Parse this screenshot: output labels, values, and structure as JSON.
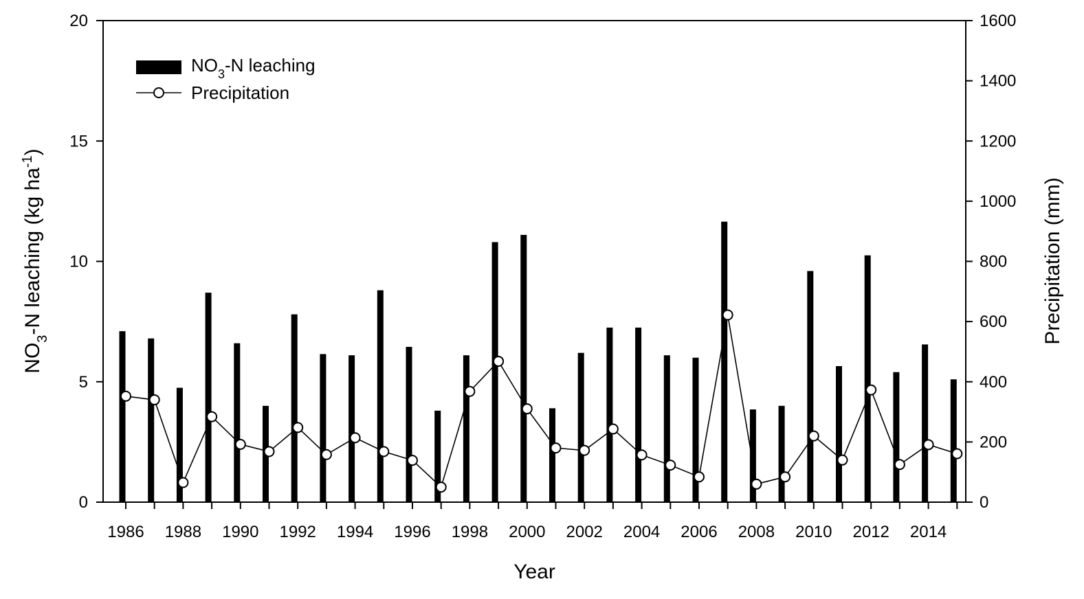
{
  "chart_data": {
    "type": "bar",
    "xlabel": "Year",
    "ylabel": {
      "main": "NO",
      "sub": "3",
      "rest": "-N leaching (kg ha",
      "sup": "-1",
      "close": ")"
    },
    "y2label": "Precipitation (mm)",
    "ylim": [
      0,
      20
    ],
    "y2lim": [
      0,
      1600
    ],
    "yticks": [
      0,
      5,
      10,
      15,
      20
    ],
    "y2ticks": [
      0,
      200,
      400,
      600,
      800,
      1000,
      1200,
      1400,
      1600
    ],
    "xticks": [
      1986,
      1988,
      1990,
      1992,
      1994,
      1996,
      1998,
      2000,
      2002,
      2004,
      2006,
      2008,
      2010,
      2012,
      2014
    ],
    "categories": [
      1986,
      1987,
      1988,
      1989,
      1990,
      1991,
      1992,
      1993,
      1994,
      1995,
      1996,
      1997,
      1998,
      1999,
      2000,
      2001,
      2002,
      2003,
      2004,
      2005,
      2006,
      2007,
      2008,
      2009,
      2010,
      2011,
      2012,
      2013,
      2014,
      2015
    ],
    "legend_position": "top-left",
    "series": [
      {
        "name": {
          "main": "NO",
          "sub": "3",
          "rest": "-N leaching"
        },
        "type": "bar",
        "axis": "left",
        "color": "#000000",
        "values": [
          7.1,
          6.8,
          4.75,
          8.7,
          6.6,
          4.0,
          7.8,
          6.15,
          6.1,
          8.8,
          6.45,
          3.8,
          6.1,
          10.8,
          11.1,
          3.9,
          6.2,
          7.25,
          7.25,
          6.1,
          6.0,
          11.65,
          3.85,
          4.0,
          9.6,
          5.65,
          10.25,
          5.4,
          6.55,
          5.1
        ]
      },
      {
        "name": "Precipitation",
        "type": "line",
        "axis": "right",
        "color": "#000000",
        "marker": "open-circle",
        "values": [
          352,
          340,
          65,
          284,
          192,
          168,
          248,
          158,
          214,
          168,
          139,
          50,
          368,
          468,
          310,
          180,
          172,
          243,
          157,
          123,
          84,
          622,
          60,
          84,
          220,
          140,
          373,
          125,
          191,
          161
        ]
      }
    ]
  }
}
